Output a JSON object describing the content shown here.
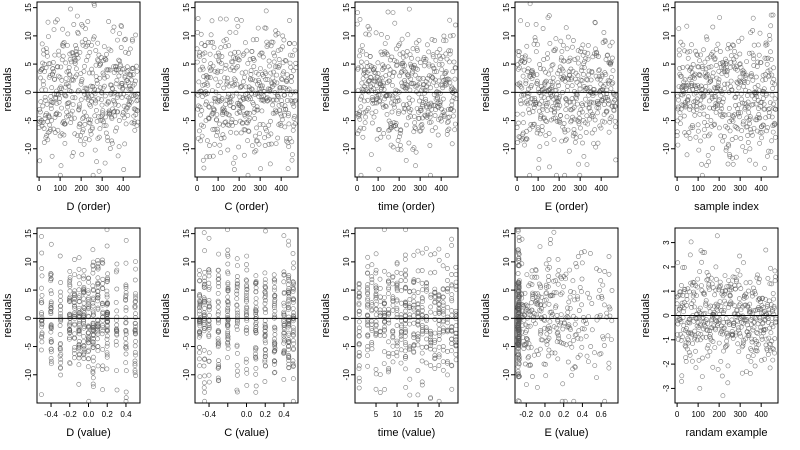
{
  "chart_data": [
    {
      "type": "scatter",
      "title": "",
      "xlabel": "D (order)",
      "ylabel": "residuals",
      "xlim": [
        -10,
        480
      ],
      "ylim": [
        -15,
        16
      ],
      "xticks": [
        0,
        100,
        200,
        300,
        400
      ],
      "yticks": [
        -10,
        -5,
        0,
        5,
        10,
        15
      ],
      "hline": 0,
      "x_kind": "index",
      "n": 480,
      "y_sd": 5.5,
      "x_lo": 0,
      "x_hi": 470,
      "seed": 11,
      "point_color": "#555555"
    },
    {
      "type": "scatter",
      "title": "",
      "xlabel": "C (order)",
      "ylabel": "residuals",
      "xlim": [
        -10,
        480
      ],
      "ylim": [
        -15,
        16
      ],
      "xticks": [
        0,
        100,
        200,
        300,
        400
      ],
      "yticks": [
        -10,
        -5,
        0,
        5,
        10,
        15
      ],
      "hline": 0,
      "x_kind": "index",
      "n": 480,
      "y_sd": 5.5,
      "x_lo": 0,
      "x_hi": 470,
      "seed": 12,
      "point_color": "#555555"
    },
    {
      "type": "scatter",
      "title": "",
      "xlabel": "time (order)",
      "ylabel": "residuals",
      "xlim": [
        -10,
        480
      ],
      "ylim": [
        -15,
        16
      ],
      "xticks": [
        0,
        100,
        200,
        300,
        400
      ],
      "yticks": [
        -10,
        -5,
        0,
        5,
        10,
        15
      ],
      "hline": 0,
      "x_kind": "index",
      "n": 480,
      "y_sd": 5.5,
      "x_lo": 0,
      "x_hi": 470,
      "seed": 13,
      "point_color": "#555555"
    },
    {
      "type": "scatter",
      "title": "",
      "xlabel": "E (order)",
      "ylabel": "residuals",
      "xlim": [
        -10,
        480
      ],
      "ylim": [
        -15,
        16
      ],
      "xticks": [
        0,
        100,
        200,
        300,
        400
      ],
      "yticks": [
        -10,
        -5,
        0,
        5,
        10,
        15
      ],
      "hline": 0,
      "x_kind": "index",
      "n": 480,
      "y_sd": 5.5,
      "x_lo": 0,
      "x_hi": 470,
      "seed": 14,
      "point_color": "#555555"
    },
    {
      "type": "scatter",
      "title": "",
      "xlabel": "sample index",
      "ylabel": "residuals",
      "xlim": [
        -10,
        480
      ],
      "ylim": [
        -15,
        16
      ],
      "xticks": [
        0,
        100,
        200,
        300,
        400
      ],
      "yticks": [
        -10,
        -5,
        0,
        5,
        10,
        15
      ],
      "hline": 0,
      "x_kind": "index",
      "n": 480,
      "y_sd": 5.5,
      "x_lo": 0,
      "x_hi": 470,
      "seed": 15,
      "point_color": "#555555"
    },
    {
      "type": "scatter",
      "title": "",
      "xlabel": "D (value)",
      "ylabel": "residuals",
      "xlim": [
        -0.55,
        0.55
      ],
      "ylim": [
        -15,
        16
      ],
      "xticks": [
        -0.4,
        -0.2,
        0.0,
        0.2,
        0.4
      ],
      "xtick_labels": [
        "-0.4",
        "-0.2",
        "0.0",
        "0.2",
        "0.4"
      ],
      "yticks": [
        -10,
        -5,
        0,
        5,
        10,
        15
      ],
      "hline": 0,
      "x_kind": "levels",
      "x_levels": [
        -0.5,
        -0.4,
        -0.3,
        -0.2,
        -0.15,
        -0.1,
        -0.05,
        0.0,
        0.05,
        0.1,
        0.15,
        0.2,
        0.3,
        0.4,
        0.5
      ],
      "x_jitter": 0.004,
      "n": 480,
      "y_sd": 5.5,
      "seed": 21,
      "point_color": "#555555"
    },
    {
      "type": "scatter",
      "title": "",
      "xlabel": "C (value)",
      "ylabel": "residuals",
      "xlim": [
        -0.55,
        0.55
      ],
      "ylim": [
        -15,
        16
      ],
      "xticks": [
        -0.4,
        -0.2,
        0.0,
        0.2,
        0.4
      ],
      "xtick_labels": [
        "-0.4",
        "",
        "0.0",
        "0.2",
        "0.4"
      ],
      "yticks": [
        -10,
        -5,
        0,
        5,
        10,
        15
      ],
      "hline": 0,
      "x_kind": "levels",
      "x_levels": [
        -0.5,
        -0.45,
        -0.4,
        -0.3,
        -0.2,
        -0.1,
        0.0,
        0.1,
        0.2,
        0.3,
        0.4,
        0.45,
        0.5
      ],
      "x_jitter": 0.004,
      "n": 480,
      "y_sd": 5.5,
      "seed": 22,
      "point_color": "#555555"
    },
    {
      "type": "scatter",
      "title": "",
      "xlabel": "time (value)",
      "ylabel": "residuals",
      "xlim": [
        0,
        24.5
      ],
      "ylim": [
        -15,
        16
      ],
      "xticks": [
        5,
        10,
        15,
        20
      ],
      "yticks": [
        -10,
        -5,
        0,
        5,
        10,
        15
      ],
      "hline": 0,
      "x_kind": "levels",
      "x_levels": [
        1,
        3,
        4,
        5,
        6,
        7,
        8,
        9,
        10,
        11,
        12,
        13,
        14,
        15,
        16,
        17,
        18,
        19,
        20,
        21,
        22,
        23,
        24
      ],
      "x_jitter": 0.05,
      "n": 480,
      "y_sd": 5.5,
      "seed": 23,
      "point_color": "#555555"
    },
    {
      "type": "scatter",
      "title": "",
      "xlabel": "E (value)",
      "ylabel": "residuals",
      "xlim": [
        -0.32,
        0.78
      ],
      "ylim": [
        -15,
        16
      ],
      "xticks": [
        -0.2,
        0.0,
        0.2,
        0.4,
        0.6
      ],
      "xtick_labels": [
        "-0.2",
        "0.0",
        "0.2",
        "0.4",
        "0.6"
      ],
      "yticks": [
        -10,
        -5,
        0,
        5,
        10,
        15
      ],
      "hline": 0,
      "x_kind": "mixed",
      "cluster_x": -0.28,
      "cluster_width": 0.015,
      "cluster_n": 180,
      "x_lo": -0.25,
      "x_hi": 0.72,
      "n": 300,
      "y_sd": 5.5,
      "seed": 24,
      "point_color": "#555555"
    },
    {
      "type": "scatter",
      "title": "",
      "xlabel": "randam example",
      "ylabel": "residuals",
      "xlim": [
        -10,
        480
      ],
      "ylim": [
        -3.6,
        3.6
      ],
      "xticks": [
        0,
        100,
        200,
        300,
        400
      ],
      "yticks": [
        -3,
        -2,
        -1,
        0,
        1,
        2,
        3
      ],
      "hline": 0,
      "x_kind": "index",
      "n": 480,
      "y_sd": 1.05,
      "x_lo": 0,
      "x_hi": 470,
      "seed": 31,
      "point_color": "#555555"
    }
  ]
}
